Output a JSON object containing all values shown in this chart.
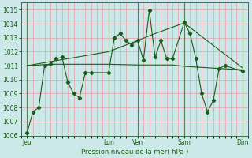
{
  "xlabel": "Pression niveau de la mer( hPa )",
  "background_color": "#cce8e8",
  "grid_color": "#e8a0a8",
  "line_color": "#1a5c1a",
  "ylim": [
    1006,
    1015.5
  ],
  "yticks": [
    1006,
    1007,
    1008,
    1009,
    1010,
    1011,
    1012,
    1013,
    1014,
    1015
  ],
  "xtick_labels": [
    "Jeu",
    "",
    "Lun",
    "Ven",
    "",
    "Sam",
    "",
    "Dim"
  ],
  "xtick_positions": [
    0,
    7,
    14,
    19,
    23,
    27,
    32,
    37
  ],
  "day_lines": [
    0,
    14,
    19,
    27,
    37
  ],
  "xlim": [
    -1,
    38
  ],
  "line1_x": [
    0,
    1,
    2,
    3,
    4,
    5,
    6,
    7,
    8,
    9,
    10,
    11,
    14,
    15,
    16,
    17,
    18,
    19,
    20,
    21,
    22,
    23,
    24,
    25,
    27,
    28,
    29,
    30,
    31,
    32,
    33,
    34,
    37
  ],
  "line1_y": [
    1006.2,
    1007.7,
    1008.0,
    1011.0,
    1011.1,
    1011.5,
    1011.6,
    1009.8,
    1009.0,
    1008.7,
    1010.5,
    1010.5,
    1010.5,
    1013.0,
    1013.3,
    1012.8,
    1012.5,
    1012.8,
    1011.4,
    1014.95,
    1011.6,
    1012.8,
    1011.5,
    1011.5,
    1014.1,
    1013.3,
    1011.5,
    1009.0,
    1007.7,
    1008.5,
    1010.8,
    1011.0,
    1010.6
  ],
  "line2_x": [
    0,
    4,
    11,
    14,
    19,
    25,
    27,
    37
  ],
  "line2_y": [
    1011.0,
    1011.1,
    1011.1,
    1011.1,
    1011.05,
    1011.05,
    1010.95,
    1010.7
  ],
  "line3_x": [
    0,
    14,
    19,
    22,
    27,
    37
  ],
  "line3_y": [
    1011.0,
    1012.0,
    1012.8,
    1013.3,
    1014.05,
    1010.85
  ]
}
